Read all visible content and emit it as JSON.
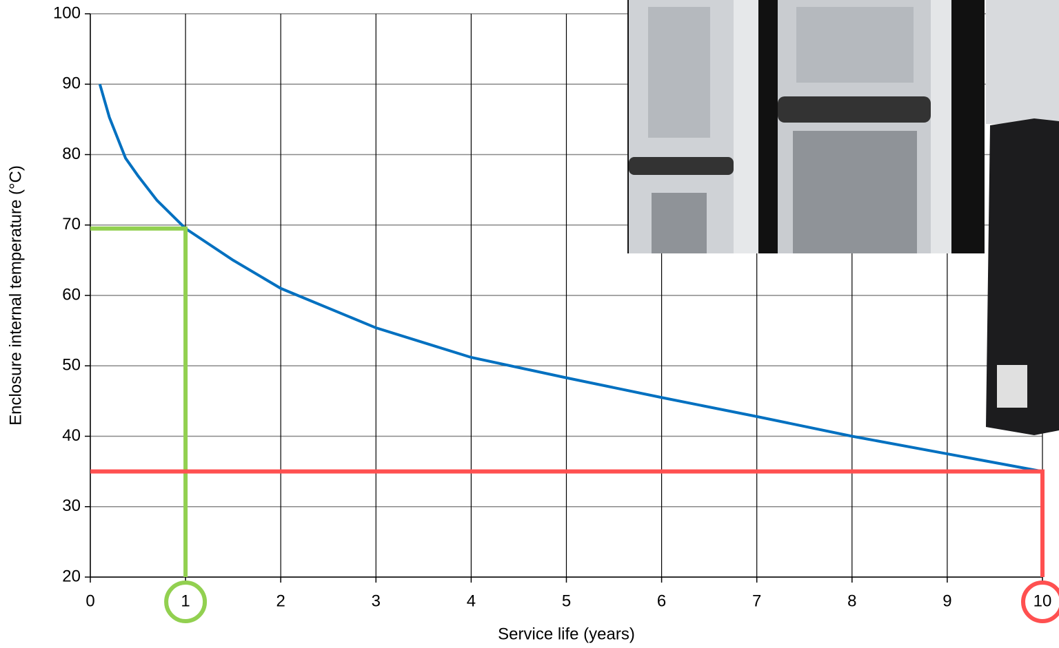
{
  "chart_data": {
    "type": "line",
    "xlabel": "Service life (years)",
    "ylabel": "Enclosure internal temperature (°C)",
    "xlim": [
      0,
      10
    ],
    "ylim": [
      20,
      100
    ],
    "xticks": [
      0,
      1,
      2,
      3,
      4,
      5,
      6,
      7,
      8,
      9,
      10
    ],
    "yticks": [
      20,
      30,
      40,
      50,
      60,
      70,
      80,
      90,
      100
    ],
    "grid": true,
    "series": [
      {
        "color": "#0070c0",
        "x": [
          0.1,
          0.2,
          0.37,
          0.5,
          0.7,
          1,
          1.5,
          2,
          3,
          4,
          5,
          6,
          7,
          8,
          9,
          10
        ],
        "values": [
          90,
          85.3,
          79.5,
          77,
          73.5,
          69.5,
          65,
          61,
          55.4,
          51.2,
          48.3,
          45.5,
          42.8,
          40,
          37.5,
          35
        ]
      }
    ],
    "highlights": [
      {
        "x": 1,
        "y": 69.5,
        "color": "#92d050"
      },
      {
        "x": 10,
        "y": 35,
        "color": "#ff5050"
      }
    ]
  }
}
